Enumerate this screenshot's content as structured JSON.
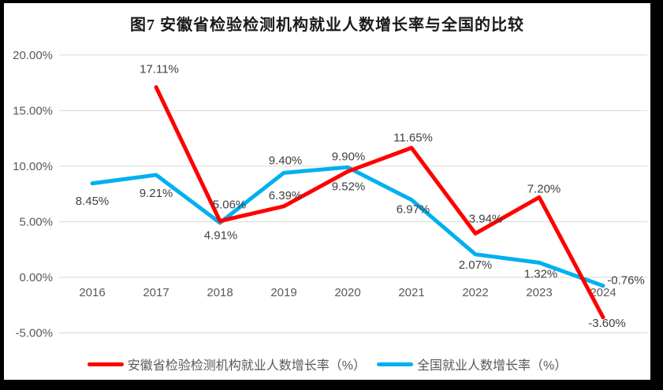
{
  "chart_data": {
    "type": "line",
    "title": "图7 安徽省检验检测机构就业人数增长率与全国的比较",
    "categories": [
      "2016",
      "2017",
      "2018",
      "2019",
      "2020",
      "2021",
      "2022",
      "2023",
      "2024"
    ],
    "series": [
      {
        "name": "安徽省检验检测机构就业人数增长率（%）",
        "color": "#FF0000",
        "values": [
          null,
          17.11,
          5.06,
          6.39,
          9.52,
          11.65,
          3.94,
          7.2,
          -3.6
        ],
        "point_labels": [
          "",
          "17.11%",
          "5.06%",
          "6.39%",
          "9.52%",
          "11.65%",
          "3.94%",
          "7.20%",
          "-3.60%"
        ]
      },
      {
        "name": "全国就业人数增长率（%）",
        "color": "#00B0F0",
        "values": [
          8.45,
          9.21,
          4.91,
          9.4,
          9.9,
          6.97,
          2.07,
          1.32,
          -0.76
        ],
        "point_labels": [
          "8.45%",
          "9.21%",
          "4.91%",
          "9.40%",
          "9.90%",
          "6.97%",
          "2.07%",
          "1.32%",
          "-0.76%"
        ]
      }
    ],
    "y_axis": {
      "tick_labels": [
        "20.00%",
        "15.00%",
        "10.00%",
        "5.00%",
        "0.00%",
        "-5.00%"
      ],
      "tick_values": [
        20,
        15,
        10,
        5,
        0,
        -5
      ]
    },
    "ylim": [
      -5,
      20
    ],
    "grid": true,
    "legend_position": "bottom",
    "grid_color": "#D9D9D9",
    "axis_text_color": "#595959",
    "data_label_color": "#404040",
    "frame_color": "#000000",
    "background_color": "#FFFFFF"
  }
}
